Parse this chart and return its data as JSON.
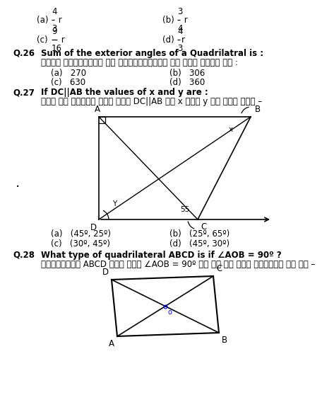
{
  "bg_color": "#ffffff",
  "text_color": "#000000",
  "fs": 8.5,
  "fs_bold": 8.5,
  "q26_text1": "Sum of the exterior angles of a Quadrilatral is :",
  "q26_text2": "किसी चतुर्भुज के बहिष्कोणों का योग होता है :",
  "q26_a": "(a)   270",
  "q26_b": "(b)   306",
  "q26_c": "(c)   630",
  "q26_d": "(d)   360",
  "q27_text1": "If DC||AB the values of x and y are :",
  "q27_text2": "दिए गए चित्र में यदि DC||AB तो x तथा y के मान हैं –",
  "q27_a": "(a)   (45º, 25º)",
  "q27_b": "(b)   (25º, 65º)",
  "q27_c": "(c)   (30º, 45º)",
  "q27_d": "(d)   (45º, 30º)",
  "q28_text1": "What type of quadrilateral ABCD is if ∠AOB = 90º ?",
  "q28_text2": "चतुर्भुज ABCD में यदि ∠AOB = 90º हो तो यह किस प्रकार का है –"
}
